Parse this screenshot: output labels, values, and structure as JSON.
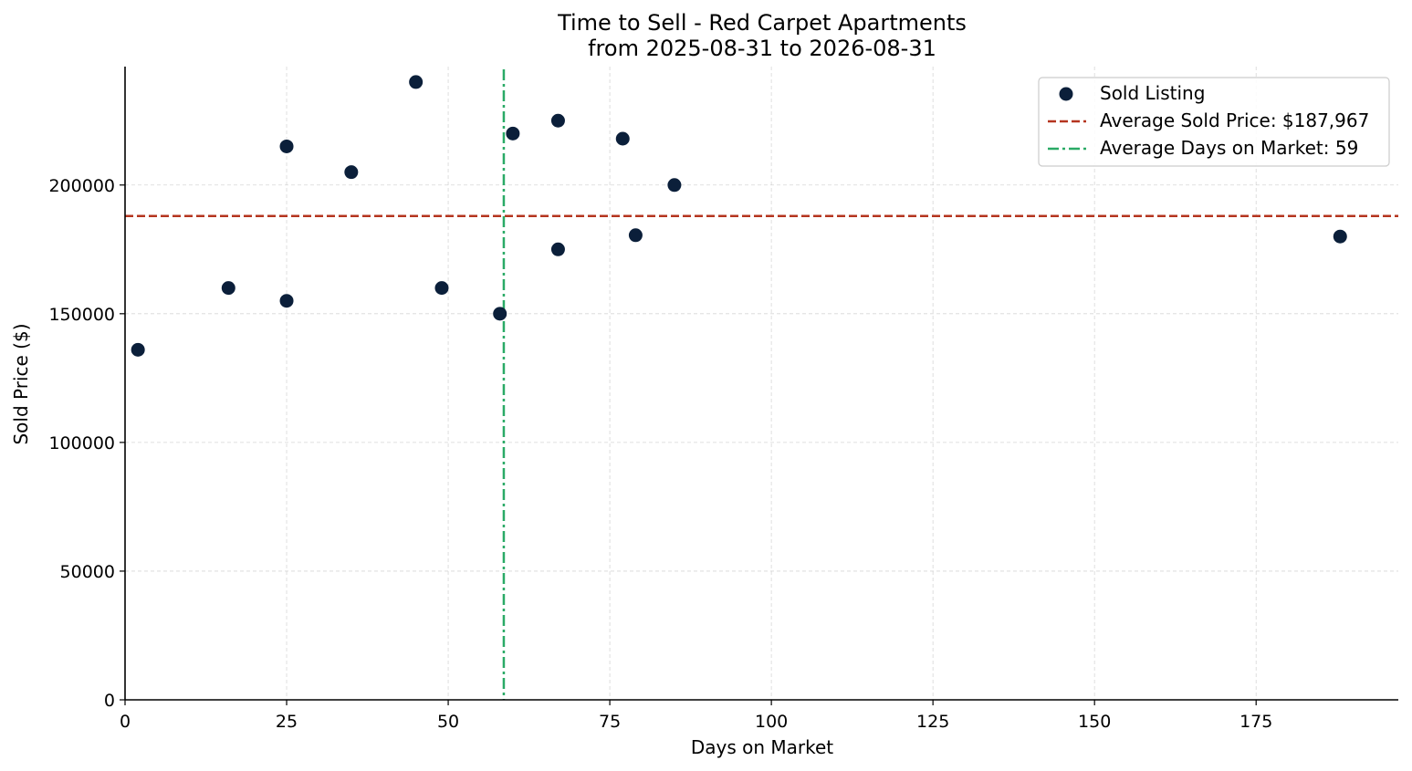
{
  "chart_data": {
    "type": "scatter",
    "title": "Time to Sell - Red Carpet Apartments",
    "subtitle": "from 2025-08-31 to 2026-08-31",
    "xlabel": "Days on Market",
    "ylabel": "Sold Price ($)",
    "xlim": [
      0,
      197
    ],
    "ylim": [
      0,
      246000
    ],
    "x_ticks": [
      0,
      25,
      50,
      75,
      100,
      125,
      150,
      175
    ],
    "y_ticks": [
      0,
      50000,
      100000,
      150000,
      200000
    ],
    "grid": true,
    "legend_position": "top-right",
    "series": [
      {
        "name": "Sold Listing",
        "color": "#0b1f3a",
        "points": [
          {
            "x": 2,
            "y": 136000
          },
          {
            "x": 16,
            "y": 160000
          },
          {
            "x": 25,
            "y": 215000
          },
          {
            "x": 25,
            "y": 155000
          },
          {
            "x": 35,
            "y": 205000
          },
          {
            "x": 45,
            "y": 240000
          },
          {
            "x": 49,
            "y": 160000
          },
          {
            "x": 58,
            "y": 150000
          },
          {
            "x": 60,
            "y": 220000
          },
          {
            "x": 67,
            "y": 225000
          },
          {
            "x": 67,
            "y": 175000
          },
          {
            "x": 77,
            "y": 218000
          },
          {
            "x": 79,
            "y": 180500
          },
          {
            "x": 85,
            "y": 200000
          },
          {
            "x": 188,
            "y": 180000
          }
        ]
      }
    ],
    "reference_lines": [
      {
        "name": "Average Sold Price: $187,967",
        "orientation": "horizontal",
        "value": 187967,
        "style": "dashed",
        "color": "#b5351f"
      },
      {
        "name": "Average Days on Market: 59",
        "orientation": "vertical",
        "value": 58.6,
        "style": "dashdot",
        "color": "#2aaa66"
      }
    ]
  }
}
